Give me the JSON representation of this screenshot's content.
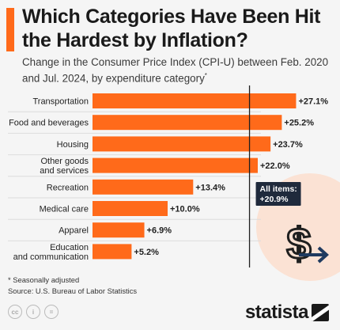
{
  "header": {
    "title": "Which Categories Have Been Hit the Hardest by Inflation?",
    "subtitle": "Change in the Consumer Price Index (CPI-U) between Feb. 2020 and Jul. 2024, by expenditure category",
    "subtitle_marker": "*"
  },
  "chart_data": {
    "type": "bar",
    "orientation": "horizontal",
    "categories": [
      "Transportation",
      "Food and beverages",
      "Housing",
      "Other goods and services",
      "Recreation",
      "Medical care",
      "Apparel",
      "Education and communication"
    ],
    "values": [
      27.1,
      25.2,
      23.7,
      22.0,
      13.4,
      10.0,
      6.9,
      5.2
    ],
    "value_labels": [
      "+27.1%",
      "+25.2%",
      "+23.7%",
      "+22.0%",
      "+13.4%",
      "+10.0%",
      "+6.9%",
      "+5.2%"
    ],
    "unit": "%",
    "reference_line": {
      "value": 20.9,
      "label_line1": "All items:",
      "label_line2": "+20.9%"
    },
    "xlim": [
      0,
      30
    ],
    "bar_color": "#ff6a1a",
    "grid": false
  },
  "footer": {
    "note": "* Seasonally adjusted",
    "source": "Source: U.S. Bureau of Labor Statistics",
    "brand": "statista",
    "license_icons": [
      "cc-icon",
      "by-icon",
      "nd-icon"
    ]
  },
  "colors": {
    "accent": "#ff6a1a",
    "background": "#f5f5f5",
    "decor_circle": "#fbe2d4",
    "text": "#1f1f1f"
  }
}
